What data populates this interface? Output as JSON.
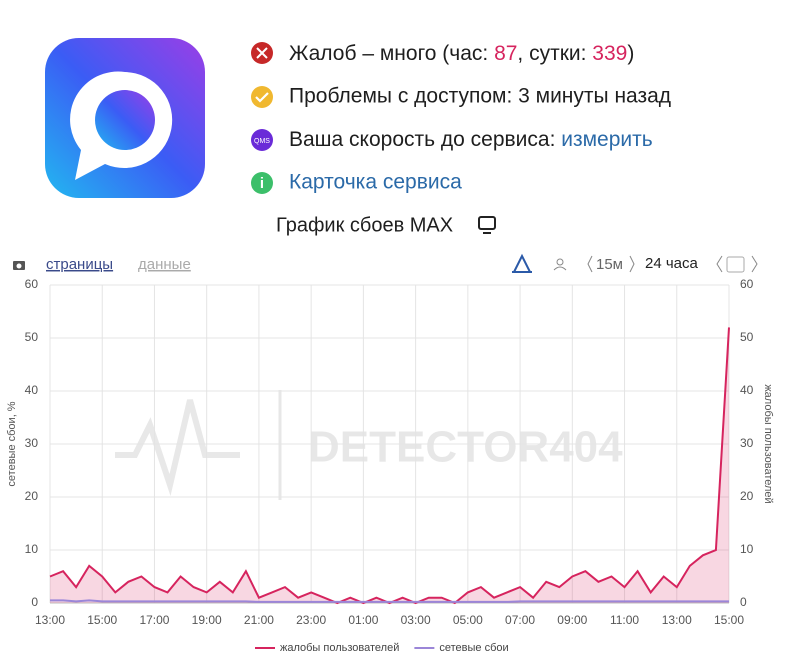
{
  "status": {
    "complaints": {
      "prefix": "Жалоб – много (час: ",
      "hour": "87",
      "middle": ", сутки: ",
      "day": "339",
      "suffix": ")"
    },
    "access": "Проблемы с доступом: 3 минуты назад",
    "speed": {
      "label": "Ваша скорость до сервиса: ",
      "link": "измерить",
      "icon": "QMS"
    },
    "card": "Карточка сервиса"
  },
  "chart_header": "График сбоев MAX",
  "toolbar": {
    "pages": "страницы",
    "data": "данные",
    "interval": "15м",
    "period": "24 часа"
  },
  "watermark": "DETECTOR404",
  "chart_data": {
    "type": "line",
    "ylabel": "сетевые сбои, %",
    "y2label": "жалобы пользователей",
    "categories": [
      "13:00",
      null,
      null,
      null,
      "15:00",
      null,
      null,
      null,
      "17:00",
      null,
      null,
      null,
      "19:00",
      null,
      null,
      null,
      "21:00",
      null,
      null,
      null,
      "23:00",
      null,
      null,
      null,
      "01:00",
      null,
      null,
      null,
      "03:00",
      null,
      null,
      null,
      "05:00",
      null,
      null,
      null,
      "07:00",
      null,
      null,
      null,
      "09:00",
      null,
      null,
      null,
      "11:00",
      null,
      null,
      null,
      "13:00",
      null,
      null,
      null,
      "15:00"
    ],
    "ylim": [
      0,
      60
    ],
    "yticks": [
      0,
      10,
      20,
      30,
      40,
      50,
      60
    ],
    "y2lim": [
      0,
      60
    ],
    "y2ticks": [
      0,
      10,
      20,
      30,
      40,
      50,
      60
    ],
    "grid": true,
    "series": [
      {
        "name": "жалобы пользователей",
        "color": "#d6245e",
        "axis": "y2",
        "values": [
          5,
          6,
          3,
          7,
          5,
          2,
          4,
          5,
          3,
          2,
          5,
          3,
          2,
          4,
          2,
          6,
          1,
          2,
          3,
          1,
          2,
          1,
          0,
          1,
          0,
          1,
          0,
          1,
          0,
          1,
          1,
          0,
          2,
          3,
          1,
          2,
          3,
          1,
          4,
          3,
          5,
          6,
          4,
          5,
          3,
          6,
          2,
          5,
          3,
          7,
          9,
          10,
          52
        ]
      },
      {
        "name": "сетевые сбои",
        "color": "#9b86d8",
        "values": [
          0.5,
          0.5,
          0.3,
          0.5,
          0.3,
          0.3,
          0.3,
          0.3,
          0.3,
          0.3,
          0.3,
          0.3,
          0.3,
          0.3,
          0.3,
          0.3,
          0.2,
          0.2,
          0.2,
          0.2,
          0.2,
          0.2,
          0.2,
          0.2,
          0.2,
          0.2,
          0.2,
          0.2,
          0.2,
          0.2,
          0.2,
          0.2,
          0.2,
          0.2,
          0.2,
          0.2,
          0.3,
          0.3,
          0.3,
          0.3,
          0.3,
          0.3,
          0.3,
          0.3,
          0.3,
          0.3,
          0.3,
          0.3,
          0.3,
          0.3,
          0.3,
          0.3,
          0.3
        ]
      }
    ]
  }
}
